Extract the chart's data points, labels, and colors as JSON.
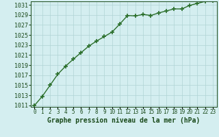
{
  "x": [
    0,
    1,
    2,
    3,
    4,
    5,
    6,
    7,
    8,
    9,
    10,
    11,
    12,
    13,
    14,
    15,
    16,
    17,
    18,
    19,
    20,
    21,
    22,
    23
  ],
  "y": [
    1011.0,
    1012.8,
    1015.0,
    1017.2,
    1018.8,
    1020.2,
    1021.5,
    1022.8,
    1023.8,
    1024.7,
    1025.6,
    1027.2,
    1028.9,
    1028.8,
    1029.1,
    1028.9,
    1029.4,
    1029.8,
    1030.2,
    1030.2,
    1030.9,
    1031.3,
    1031.7,
    1031.9
  ],
  "line_color": "#2a6e2a",
  "marker": "+",
  "marker_size": 5,
  "line_width": 1.0,
  "bg_color": "#d4eef0",
  "grid_color": "#b0d4d4",
  "title": "Graphe pression niveau de la mer (hPa)",
  "title_color": "#1a4a1a",
  "title_fontsize": 7,
  "ytick_min": 1011,
  "ytick_max": 1031,
  "ytick_step": 2,
  "xtick_labels": [
    "0",
    "1",
    "2",
    "3",
    "4",
    "5",
    "6",
    "7",
    "8",
    "9",
    "10",
    "11",
    "12",
    "13",
    "14",
    "15",
    "16",
    "17",
    "18",
    "19",
    "20",
    "21",
    "22",
    "23"
  ],
  "tick_fontsize": 6,
  "tick_color": "#1a4a1a"
}
